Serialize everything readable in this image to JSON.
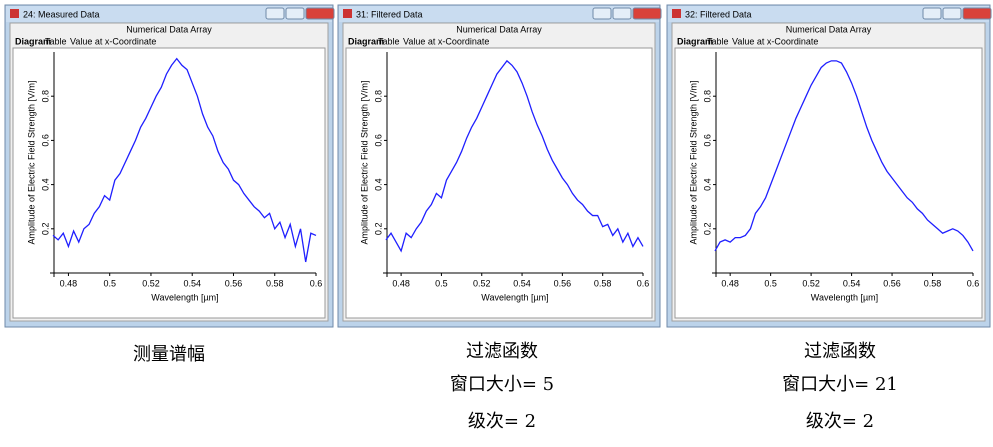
{
  "windows": [
    {
      "title": "24: Measured Data",
      "header": "Numerical Data Array",
      "tabs": [
        "Diagram",
        "Table",
        "Value at x-Coordinate"
      ]
    },
    {
      "title": "31: Filtered Data",
      "header": "Numerical Data Array",
      "tabs": [
        "Diagram",
        "Table",
        "Value at x-Coordinate"
      ]
    },
    {
      "title": "32: Filtered Data",
      "header": "Numerical Data Array",
      "tabs": [
        "Diagram",
        "Table",
        "Value at x-Coordinate"
      ]
    }
  ],
  "chart_data": [
    {
      "type": "line",
      "xlabel": "Wavelength [µm]",
      "ylabel": "Amplitude of Electric Field Strength [V/m]",
      "x": [
        0.4725,
        0.475,
        0.4775,
        0.48,
        0.4825,
        0.485,
        0.4875,
        0.49,
        0.4925,
        0.495,
        0.4975,
        0.5,
        0.5025,
        0.505,
        0.5075,
        0.51,
        0.5125,
        0.515,
        0.5175,
        0.52,
        0.5225,
        0.525,
        0.5275,
        0.53,
        0.5325,
        0.535,
        0.5375,
        0.54,
        0.5425,
        0.545,
        0.5475,
        0.55,
        0.5525,
        0.555,
        0.5575,
        0.56,
        0.5625,
        0.565,
        0.5675,
        0.57,
        0.5725,
        0.575,
        0.5775,
        0.58,
        0.5825,
        0.585,
        0.5875,
        0.59,
        0.5925,
        0.595,
        0.5975,
        0.6
      ],
      "series": [
        {
          "color": "#1f1fff",
          "values": [
            0.17,
            0.15,
            0.18,
            0.12,
            0.19,
            0.14,
            0.2,
            0.22,
            0.27,
            0.3,
            0.35,
            0.33,
            0.42,
            0.45,
            0.5,
            0.55,
            0.6,
            0.66,
            0.7,
            0.75,
            0.8,
            0.84,
            0.9,
            0.94,
            0.97,
            0.94,
            0.92,
            0.86,
            0.8,
            0.72,
            0.66,
            0.62,
            0.55,
            0.5,
            0.47,
            0.42,
            0.4,
            0.36,
            0.33,
            0.3,
            0.28,
            0.25,
            0.27,
            0.2,
            0.23,
            0.16,
            0.22,
            0.12,
            0.2,
            0.05,
            0.18,
            0.17
          ]
        }
      ],
      "xlim": [
        0.473,
        0.6
      ],
      "ylim": [
        0,
        1
      ],
      "xticks": [
        0.48,
        0.5,
        0.52,
        0.54,
        0.56,
        0.58,
        0.6
      ],
      "yticks": [
        0.2,
        0.4,
        0.6,
        0.8
      ]
    },
    {
      "type": "line",
      "xlabel": "Wavelength [µm]",
      "ylabel": "Amplitude of Electric Field Strength [V/m]",
      "x": [
        0.4725,
        0.475,
        0.4775,
        0.48,
        0.4825,
        0.485,
        0.4875,
        0.49,
        0.4925,
        0.495,
        0.4975,
        0.5,
        0.5025,
        0.505,
        0.5075,
        0.51,
        0.5125,
        0.515,
        0.5175,
        0.52,
        0.5225,
        0.525,
        0.5275,
        0.53,
        0.5325,
        0.535,
        0.5375,
        0.54,
        0.5425,
        0.545,
        0.5475,
        0.55,
        0.5525,
        0.555,
        0.5575,
        0.56,
        0.5625,
        0.565,
        0.5675,
        0.57,
        0.5725,
        0.575,
        0.5775,
        0.58,
        0.5825,
        0.585,
        0.5875,
        0.59,
        0.5925,
        0.595,
        0.5975,
        0.6
      ],
      "series": [
        {
          "color": "#1f1fff",
          "values": [
            0.15,
            0.18,
            0.14,
            0.1,
            0.18,
            0.16,
            0.2,
            0.23,
            0.28,
            0.31,
            0.36,
            0.34,
            0.42,
            0.46,
            0.5,
            0.55,
            0.61,
            0.66,
            0.7,
            0.75,
            0.8,
            0.85,
            0.9,
            0.93,
            0.96,
            0.94,
            0.91,
            0.86,
            0.8,
            0.73,
            0.67,
            0.62,
            0.56,
            0.51,
            0.47,
            0.43,
            0.4,
            0.36,
            0.33,
            0.31,
            0.28,
            0.26,
            0.26,
            0.21,
            0.22,
            0.17,
            0.2,
            0.14,
            0.18,
            0.12,
            0.16,
            0.12
          ]
        }
      ],
      "xlim": [
        0.473,
        0.6
      ],
      "ylim": [
        0,
        1
      ],
      "xticks": [
        0.48,
        0.5,
        0.52,
        0.54,
        0.56,
        0.58,
        0.6
      ],
      "yticks": [
        0.2,
        0.4,
        0.6,
        0.8
      ]
    },
    {
      "type": "line",
      "xlabel": "Wavelength [µm]",
      "ylabel": "Amplitude of Electric Field Strength [V/m]",
      "x": [
        0.4725,
        0.475,
        0.4775,
        0.48,
        0.4825,
        0.485,
        0.4875,
        0.49,
        0.4925,
        0.495,
        0.4975,
        0.5,
        0.5025,
        0.505,
        0.5075,
        0.51,
        0.5125,
        0.515,
        0.5175,
        0.52,
        0.5225,
        0.525,
        0.5275,
        0.53,
        0.5325,
        0.535,
        0.5375,
        0.54,
        0.5425,
        0.545,
        0.5475,
        0.55,
        0.5525,
        0.555,
        0.5575,
        0.56,
        0.5625,
        0.565,
        0.5675,
        0.57,
        0.5725,
        0.575,
        0.5775,
        0.58,
        0.5825,
        0.585,
        0.5875,
        0.59,
        0.5925,
        0.595,
        0.5975,
        0.6
      ],
      "series": [
        {
          "color": "#1f1fff",
          "values": [
            0.1,
            0.14,
            0.15,
            0.14,
            0.16,
            0.16,
            0.17,
            0.2,
            0.27,
            0.3,
            0.34,
            0.4,
            0.46,
            0.52,
            0.58,
            0.64,
            0.7,
            0.75,
            0.8,
            0.85,
            0.89,
            0.93,
            0.95,
            0.96,
            0.96,
            0.95,
            0.91,
            0.86,
            0.8,
            0.73,
            0.66,
            0.6,
            0.55,
            0.5,
            0.46,
            0.43,
            0.4,
            0.37,
            0.34,
            0.32,
            0.29,
            0.27,
            0.24,
            0.22,
            0.2,
            0.18,
            0.19,
            0.2,
            0.19,
            0.17,
            0.14,
            0.1
          ]
        }
      ],
      "xlim": [
        0.473,
        0.6
      ],
      "ylim": [
        0,
        1
      ],
      "xticks": [
        0.48,
        0.5,
        0.52,
        0.54,
        0.56,
        0.58,
        0.6
      ],
      "yticks": [
        0.2,
        0.4,
        0.6,
        0.8
      ]
    }
  ],
  "captions": [
    [
      "测量谱幅"
    ],
    [
      "过滤函数",
      "窗口大小= 5",
      "级次= 2"
    ],
    [
      "过滤函数",
      "窗口大小= 21",
      "级次= 2"
    ]
  ]
}
